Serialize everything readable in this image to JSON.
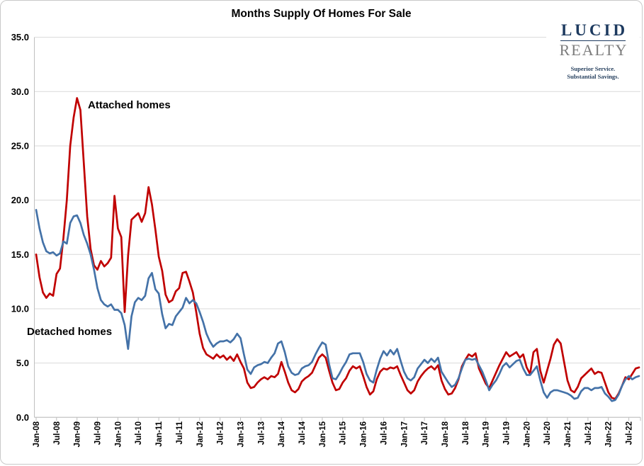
{
  "title": "Months Supply Of Homes For Sale",
  "annotations": {
    "attached_label": "Attached homes",
    "detached_label": "Detached homes"
  },
  "logo": {
    "line1": "LUCID",
    "line2": "REALTY",
    "tagline1": "Superior Service.",
    "tagline2": "Substantial Savings.",
    "color_primary": "#1d3a5f",
    "color_secondary": "#7d7d7d"
  },
  "chart_data": {
    "type": "line",
    "title": "Months Supply Of Homes For Sale",
    "xlabel": "",
    "ylabel": "",
    "x_interval": "monthly",
    "x_start": "Jan-08",
    "x_end": "Oct-22",
    "ylim": [
      0,
      35
    ],
    "grid": true,
    "legend_position": "inline-annotations",
    "y_ticks": [
      0,
      5,
      10,
      15,
      20,
      25,
      30,
      35
    ],
    "x_tick_every": 6,
    "x_tick_labels": [
      "Jan-08",
      "Jul-08",
      "Jan-09",
      "Jul-09",
      "Jan-10",
      "Jul-10",
      "Jan-11",
      "Jul-11",
      "Jan-12",
      "Jul-12",
      "Jan-13",
      "Jul-13",
      "Jan-14",
      "Jul-14",
      "Jan-15",
      "Jul-15",
      "Jan-16",
      "Jul-16",
      "Jan-17",
      "Jul-17",
      "Jan-18",
      "Jul-18",
      "Jan-19",
      "Jul-19",
      "Jan-20",
      "Jul-20",
      "Jan-21",
      "Jul-21",
      "Jan-22",
      "Jul-22"
    ],
    "colors": {
      "attached": "#c00000",
      "detached": "#4472a8",
      "grid": "#d9d9d9",
      "axis": "#bfbfbf"
    },
    "series": [
      {
        "name": "Attached homes",
        "data_name": "attached-series-line",
        "color": "#c00000",
        "values": [
          15.0,
          12.9,
          11.5,
          11.0,
          11.4,
          11.2,
          13.2,
          13.7,
          16.5,
          20.0,
          25.0,
          27.6,
          29.4,
          28.3,
          23.4,
          18.5,
          15.5,
          14.0,
          13.6,
          14.4,
          13.9,
          14.2,
          14.7,
          20.4,
          17.4,
          16.6,
          9.7,
          14.9,
          18.2,
          18.5,
          18.8,
          18.0,
          18.8,
          21.2,
          19.6,
          17.3,
          14.8,
          13.5,
          11.3,
          10.6,
          10.8,
          11.6,
          11.9,
          13.3,
          13.4,
          12.5,
          11.5,
          9.7,
          7.7,
          6.4,
          5.8,
          5.6,
          5.4,
          5.8,
          5.5,
          5.7,
          5.3,
          5.6,
          5.2,
          5.8,
          5.1,
          4.5,
          3.2,
          2.7,
          2.8,
          3.2,
          3.5,
          3.7,
          3.5,
          3.8,
          3.7,
          4.0,
          5.1,
          4.2,
          3.2,
          2.5,
          2.3,
          2.6,
          3.3,
          3.6,
          3.8,
          4.1,
          4.8,
          5.5,
          5.8,
          5.5,
          4.3,
          3.2,
          2.5,
          2.6,
          3.2,
          3.6,
          4.3,
          4.7,
          4.5,
          4.7,
          3.8,
          2.8,
          2.1,
          2.4,
          3.5,
          4.2,
          4.5,
          4.4,
          4.6,
          4.5,
          4.7,
          3.9,
          3.2,
          2.5,
          2.2,
          2.5,
          3.3,
          3.8,
          4.2,
          4.5,
          4.7,
          4.4,
          4.8,
          3.4,
          2.6,
          2.1,
          2.2,
          2.7,
          3.5,
          4.7,
          5.3,
          5.8,
          5.6,
          5.9,
          4.5,
          3.8,
          3.1,
          2.7,
          3.4,
          4.1,
          4.8,
          5.4,
          6.0,
          5.6,
          5.8,
          6.0,
          5.5,
          5.8,
          4.6,
          4.0,
          6.0,
          6.3,
          4.3,
          3.2,
          4.3,
          5.4,
          6.7,
          7.2,
          6.8,
          5.1,
          3.4,
          2.5,
          2.3,
          2.8,
          3.6,
          3.9,
          4.2,
          4.5,
          4.0,
          4.2,
          4.1,
          3.2,
          2.3,
          1.8,
          1.7,
          2.2,
          2.9,
          3.7,
          3.5,
          4.0,
          4.5,
          4.6
        ]
      },
      {
        "name": "Detached homes",
        "data_name": "detached-series-line",
        "color": "#4472a8",
        "values": [
          19.1,
          17.4,
          16.1,
          15.3,
          15.1,
          15.2,
          14.9,
          15.1,
          16.2,
          16.0,
          17.9,
          18.5,
          18.6,
          17.9,
          16.8,
          16.0,
          15.0,
          13.6,
          11.9,
          10.8,
          10.4,
          10.2,
          10.4,
          9.9,
          9.9,
          9.6,
          8.5,
          6.3,
          9.3,
          10.6,
          11.0,
          10.8,
          11.2,
          12.8,
          13.3,
          11.8,
          11.4,
          9.5,
          8.2,
          8.6,
          8.5,
          9.3,
          9.7,
          10.1,
          11.0,
          10.5,
          10.8,
          10.5,
          9.7,
          8.8,
          7.7,
          7.0,
          6.5,
          6.8,
          7.0,
          7.0,
          7.1,
          6.9,
          7.2,
          7.7,
          7.3,
          5.8,
          4.4,
          4.0,
          4.6,
          4.8,
          4.9,
          5.1,
          5.0,
          5.5,
          5.9,
          6.8,
          7.0,
          6.0,
          4.7,
          4.1,
          3.9,
          4.0,
          4.5,
          4.7,
          4.8,
          5.1,
          5.8,
          6.4,
          6.9,
          6.7,
          4.9,
          3.6,
          3.5,
          4.0,
          4.6,
          5.1,
          5.8,
          5.9,
          5.9,
          5.9,
          5.1,
          4.0,
          3.4,
          3.2,
          4.4,
          5.4,
          6.1,
          5.7,
          6.2,
          5.8,
          6.3,
          5.2,
          4.2,
          3.6,
          3.4,
          3.7,
          4.5,
          4.9,
          5.3,
          5.0,
          5.4,
          5.1,
          5.5,
          4.2,
          3.7,
          3.2,
          2.8,
          3.0,
          3.6,
          4.5,
          5.3,
          5.4,
          5.3,
          5.4,
          4.8,
          4.2,
          3.4,
          2.5,
          3.0,
          3.4,
          4.0,
          4.7,
          5.0,
          4.6,
          4.9,
          5.2,
          5.3,
          4.5,
          3.9,
          3.9,
          4.3,
          4.7,
          3.4,
          2.3,
          1.8,
          2.3,
          2.5,
          2.5,
          2.4,
          2.3,
          2.2,
          2.0,
          1.7,
          1.8,
          2.4,
          2.7,
          2.7,
          2.5,
          2.7,
          2.7,
          2.8,
          2.2,
          1.9,
          1.5,
          1.6,
          2.1,
          2.9,
          3.5,
          3.8,
          3.5,
          3.7,
          3.8
        ]
      }
    ]
  }
}
